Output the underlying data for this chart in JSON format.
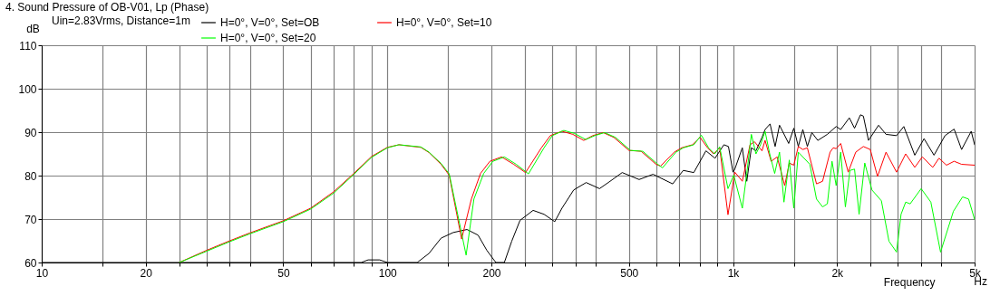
{
  "chart_data": {
    "type": "line",
    "title": "4. Sound Pressure of OB-V01, Lp (Phase)",
    "subtitle": "Uin=2.83Vrms, Distance=1m",
    "xlabel": "Frequency",
    "ylabel": "dB",
    "annotations": [
      "Hz"
    ],
    "log": "x",
    "grid": true,
    "legend": "top left",
    "xlim": [
      10,
      5000
    ],
    "ylim": [
      60,
      110
    ],
    "xticks": [
      10,
      {
        "value": 15,
        "label": null
      },
      20,
      {
        "value": 25,
        "label": null
      },
      {
        "value": 30,
        "label": null
      },
      {
        "value": 35,
        "label": null
      },
      {
        "value": 40,
        "label": null
      },
      50,
      {
        "value": 60,
        "label": null
      },
      {
        "value": 70,
        "label": null
      },
      {
        "value": 80,
        "label": null
      },
      {
        "value": 90,
        "label": null
      },
      100,
      {
        "value": 150,
        "label": null
      },
      200,
      {
        "value": 250,
        "label": null
      },
      {
        "value": 300,
        "label": null
      },
      {
        "value": 350,
        "label": null
      },
      {
        "value": 400,
        "label": null
      },
      500,
      {
        "value": 600,
        "label": null
      },
      {
        "value": 700,
        "label": null
      },
      {
        "value": 800,
        "label": null
      },
      {
        "value": 900,
        "label": null
      },
      {
        "value": 1000,
        "label": "1k"
      },
      {
        "value": 1500,
        "label": null
      },
      {
        "value": 2000,
        "label": "2k"
      },
      {
        "value": 2500,
        "label": null
      },
      {
        "value": 3000,
        "label": null
      },
      {
        "value": 3500,
        "label": null
      },
      {
        "value": 4000,
        "label": null
      },
      {
        "value": 5000,
        "label": "5k"
      }
    ],
    "yticks": [
      60,
      70,
      80,
      90,
      100,
      110
    ],
    "series": [
      {
        "name": "H=0°, V=0°, Set=OB",
        "color": "#000000",
        "x": [
          10,
          84,
          88,
          95,
          100,
          122,
          132,
          143,
          155,
          170,
          183,
          194,
          206,
          218,
          229,
          242,
          264,
          284,
          305,
          320,
          346,
          376,
          411,
          441,
          478,
          535,
          587,
          669,
          718,
          770,
          835,
          887,
          941,
          970,
          1000,
          1012,
          1064,
          1096,
          1130,
          1165,
          1213,
          1238,
          1280,
          1324,
          1363,
          1449,
          1499,
          1545,
          1592,
          1641,
          1691,
          1759,
          1875,
          1988,
          2049,
          2170,
          2247,
          2337,
          2383,
          2466,
          2637,
          2771,
          2972,
          3120,
          3356,
          3570,
          3815,
          4105,
          4362,
          4585,
          4888,
          5000
        ],
        "values": [
          60,
          60,
          60.6,
          60.6,
          60,
          60,
          62.1,
          65.6,
          66.9,
          67.6,
          66.3,
          62.8,
          60,
          60,
          64.9,
          69.7,
          72,
          71.1,
          69.4,
          72.5,
          76.7,
          78.4,
          77,
          78.7,
          80.7,
          79.1,
          80.3,
          78.1,
          81.2,
          80.7,
          85.7,
          84,
          87.1,
          86.7,
          80.8,
          81.5,
          86.4,
          78.7,
          86.4,
          85.7,
          88.8,
          90.6,
          91.9,
          86.7,
          91.6,
          87.4,
          90.9,
          86.7,
          90.6,
          86.7,
          89.9,
          88.1,
          89.5,
          91.3,
          90.6,
          93.3,
          90.9,
          94,
          93.7,
          88.1,
          91.6,
          89.5,
          89.2,
          91.3,
          84.7,
          88.5,
          84.7,
          89.2,
          90.7,
          86,
          90.2,
          87.1
        ]
      },
      {
        "name": "H=0°, V=0°, Set=10",
        "color": "#ff0000",
        "x": [
          25,
          30,
          35,
          40,
          50,
          60,
          70,
          80,
          90,
          100,
          108,
          125,
          132,
          143,
          151,
          164,
          175,
          186,
          198,
          214,
          232,
          251,
          279,
          296,
          320,
          344,
          370,
          393,
          421,
          452,
          500,
          542,
          599,
          617,
          676,
          711,
          763,
          803,
          844,
          879,
          915,
          967,
          1012,
          1064,
          1120,
          1154,
          1213,
          1238,
          1289,
          1342,
          1411,
          1455,
          1499,
          1545,
          1592,
          1641,
          1744,
          1816,
          1909,
          1949,
          1988,
          2049,
          2154,
          2265,
          2383,
          2495,
          2619,
          2771,
          2972,
          3159,
          3356,
          3529,
          3784,
          3943,
          4146,
          4362,
          4585,
          5000
        ],
        "values": [
          60,
          62.8,
          65,
          66.8,
          69.6,
          72.5,
          76.3,
          80.5,
          84.4,
          86.5,
          87.1,
          86.5,
          85.3,
          82.6,
          80.1,
          65.4,
          74.6,
          80.5,
          83.3,
          84.3,
          82.6,
          80.7,
          86.4,
          89.2,
          90.2,
          89.5,
          88.1,
          89.2,
          89.9,
          88.8,
          85.8,
          85.6,
          82.6,
          82.2,
          85.4,
          86.4,
          87.1,
          88.8,
          86.4,
          85,
          86.4,
          71,
          80.8,
          78.7,
          87.1,
          87.8,
          85.7,
          88.1,
          83.3,
          84.3,
          77.7,
          82.9,
          82.4,
          86.7,
          86,
          86.4,
          78.1,
          78.7,
          85.4,
          86.4,
          86.2,
          87.4,
          80.8,
          85.4,
          86.7,
          86,
          79.8,
          85.4,
          80.8,
          85,
          81.9,
          84.3,
          81.9,
          84,
          82.4,
          83.3,
          82.6,
          82.4
        ]
      },
      {
        "name": "H=0°, V=0°, Set=20",
        "color": "#00ff00",
        "x": [
          25,
          30,
          35,
          40,
          50,
          60,
          70,
          80,
          90,
          100,
          108,
          125,
          132,
          143,
          151,
          169,
          178,
          190,
          202,
          218,
          236,
          256,
          284,
          300,
          324,
          348,
          375,
          398,
          425,
          457,
          505,
          548,
          606,
          625,
          684,
          718,
          770,
          810,
          850,
          885,
          915,
          967,
          1005,
          1064,
          1096,
          1130,
          1165,
          1201,
          1238,
          1277,
          1320,
          1363,
          1404,
          1455,
          1499,
          1545,
          1668,
          1744,
          1816,
          1875,
          1934,
          1988,
          2049,
          2114,
          2179,
          2247,
          2316,
          2405,
          2523,
          2687,
          2826,
          2972,
          3063,
          3159,
          3254,
          3502,
          3736,
          3985,
          4342,
          4614,
          4804,
          5000
        ],
        "values": [
          60,
          62.6,
          64.8,
          66.6,
          69.4,
          72.3,
          76,
          80.3,
          84.2,
          86.4,
          87.1,
          86.6,
          85.4,
          82.8,
          80.4,
          61.7,
          74.6,
          80.5,
          83.3,
          84.3,
          82.6,
          80.4,
          86.4,
          89.2,
          90.4,
          89.7,
          88.3,
          89.2,
          89.9,
          88.8,
          85.8,
          85.6,
          82.6,
          81.8,
          85.4,
          86.4,
          87.1,
          89.3,
          86.4,
          85,
          86.6,
          77,
          80.1,
          72.5,
          80.5,
          89.5,
          85,
          87.1,
          90.2,
          85,
          80.5,
          85.4,
          73.9,
          83.6,
          72.5,
          85.4,
          82.6,
          74.6,
          72.8,
          73.5,
          83.3,
          77.7,
          85.4,
          72.8,
          81.2,
          81.5,
          71.1,
          82.9,
          76.7,
          74.2,
          64.9,
          62.4,
          71.1,
          73.9,
          73.5,
          77,
          73.9,
          62.4,
          71.8,
          75.1,
          74.6,
          69.9
        ]
      }
    ]
  }
}
